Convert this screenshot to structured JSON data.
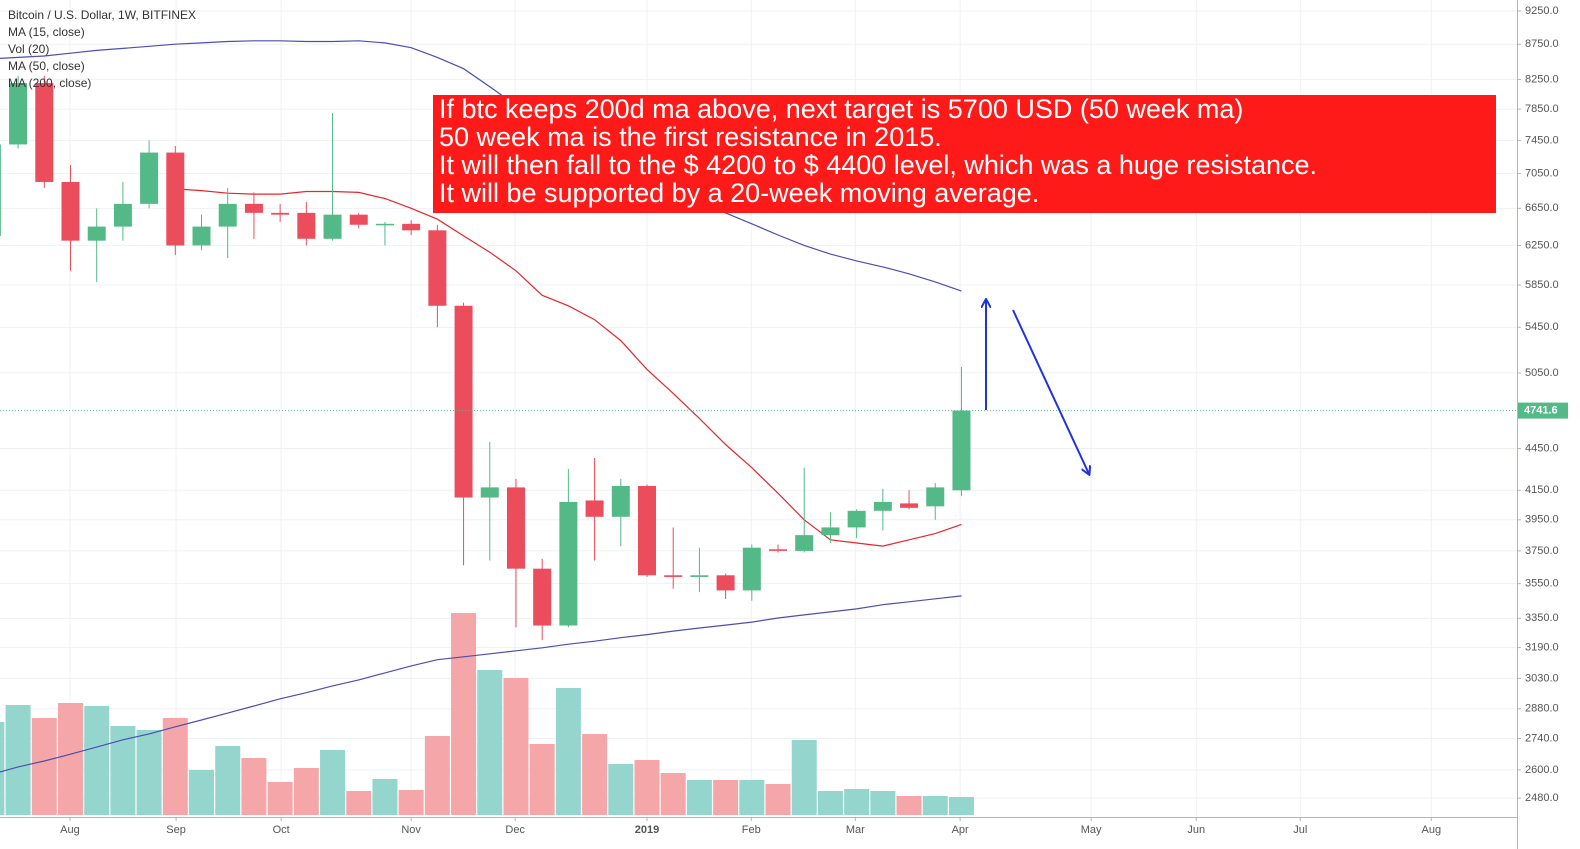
{
  "chart_data": {
    "type": "candlestick",
    "title": "Bitcoin / U.S. Dollar, 1W, BITFINEX",
    "log_scale": true,
    "grid": true,
    "up_color": "#53b987",
    "down_color": "#eb4d5c",
    "volume_up_color": "#94d6ce",
    "volume_down_color": "#f5a6a8",
    "categories": [
      null,
      null,
      null,
      null,
      null,
      null,
      null,
      null,
      null,
      null,
      null,
      null,
      null,
      null,
      null,
      null,
      null,
      null,
      null,
      null,
      null,
      null,
      null,
      null,
      null,
      null,
      null,
      null,
      null,
      null,
      null,
      null,
      null,
      null,
      null,
      null,
      null,
      null
    ],
    "open": [
      6350,
      7400,
      8200,
      6950,
      6300,
      6450,
      6700,
      7300,
      6250,
      6450,
      6700,
      6600,
      6600,
      6320,
      6580,
      6470,
      6480,
      6410,
      5650,
      4100,
      4170,
      3640,
      3310,
      4080,
      3970,
      4180,
      3600,
      3590,
      3600,
      3510,
      3760,
      3750,
      3850,
      3900,
      4010,
      4060,
      4040,
      4150
    ],
    "high": [
      7450,
      8300,
      8300,
      7150,
      6650,
      6950,
      7450,
      7380,
      6580,
      6880,
      6830,
      6700,
      6720,
      7800,
      6600,
      6500,
      6520,
      6470,
      5680,
      4500,
      4230,
      3700,
      4300,
      4380,
      4230,
      4190,
      3900,
      3770,
      3610,
      3790,
      3790,
      4310,
      4000,
      4020,
      4160,
      4150,
      4200,
      5100
    ],
    "low": [
      6250,
      7350,
      6880,
      5990,
      5880,
      6300,
      6650,
      6150,
      6200,
      6120,
      6320,
      6500,
      6250,
      6300,
      6430,
      6250,
      6360,
      5450,
      3660,
      3690,
      3300,
      3230,
      3300,
      3690,
      3780,
      3590,
      3520,
      3500,
      3460,
      3450,
      3740,
      3740,
      3800,
      3830,
      3880,
      4020,
      3950,
      4110
    ],
    "close": [
      7400,
      8200,
      6950,
      6300,
      6450,
      6700,
      7300,
      6250,
      6450,
      6700,
      6600,
      6580,
      6320,
      6580,
      6470,
      6480,
      6410,
      5650,
      4100,
      4170,
      3640,
      3310,
      4070,
      3970,
      4180,
      3600,
      3590,
      3600,
      3510,
      3770,
      3750,
      3850,
      3900,
      4010,
      4070,
      4030,
      4170,
      4741.6
    ],
    "series": [
      {
        "name": "MA (15, close)",
        "kind": "line",
        "color": "#e8262b",
        "values": [
          null,
          null,
          null,
          null,
          null,
          null,
          null,
          6870,
          6850,
          6820,
          6810,
          6810,
          6840,
          6840,
          6830,
          6760,
          6650,
          6530,
          6350,
          6180,
          5990,
          5750,
          5650,
          5520,
          5330,
          5080,
          4880,
          4680,
          4480,
          4310,
          4130,
          3950,
          3820,
          3800,
          3780,
          3820,
          3860,
          3920
        ]
      },
      {
        "name": "Vol (20)",
        "kind": "volume",
        "values": [
          93,
          110,
          97,
          112,
          109,
          89,
          85,
          97,
          45,
          69,
          57,
          33,
          47,
          65,
          24,
          36,
          25,
          79,
          202,
          145,
          137,
          71,
          127,
          81,
          51,
          55,
          42,
          35,
          35,
          35,
          31,
          75,
          24,
          26,
          24,
          19,
          19,
          18
        ]
      },
      {
        "name": "MA (50, close)",
        "kind": "line",
        "color": "#4a4fb3",
        "values": [
          8540,
          8560,
          8580,
          8620,
          8660,
          8690,
          8720,
          8750,
          8770,
          8790,
          8800,
          8800,
          8790,
          8790,
          8800,
          8770,
          8700,
          8560,
          8400,
          8150,
          7900,
          7650,
          7450,
          7250,
          7100,
          6950,
          6850,
          6720,
          6600,
          6480,
          6360,
          6250,
          6160,
          6090,
          6030,
          5960,
          5880,
          5790
        ]
      },
      {
        "name": "MA (200, close)",
        "kind": "line",
        "color": "#4a4fb3",
        "values": [
          2581,
          2613,
          2639,
          2669,
          2701,
          2734,
          2761,
          2794,
          2826,
          2859,
          2893,
          2928,
          2958,
          2992,
          3022,
          3058,
          3094,
          3126,
          3141,
          3157,
          3173,
          3189,
          3208,
          3224,
          3243,
          3260,
          3279,
          3296,
          3312,
          3329,
          3352,
          3369,
          3386,
          3403,
          3427,
          3444,
          3461,
          3478
        ]
      }
    ],
    "xlim": [
      0.31,
      58.2
    ],
    "xticks": [
      {
        "value": 2.98,
        "label": "Aug"
      },
      {
        "value": 7.03,
        "label": "Sep"
      },
      {
        "value": 11.04,
        "label": "Oct"
      },
      {
        "value": 16.0,
        "label": "Nov"
      },
      {
        "value": 19.97,
        "label": "Dec"
      },
      {
        "value": 25.0,
        "label": "2019",
        "bold": true
      },
      {
        "value": 28.98,
        "label": "Feb"
      },
      {
        "value": 32.95,
        "label": "Mar"
      },
      {
        "value": 36.95,
        "label": "Apr"
      },
      {
        "value": 41.95,
        "label": "May"
      },
      {
        "value": 45.96,
        "label": "Jun"
      },
      {
        "value": 49.93,
        "label": "Jul"
      },
      {
        "value": 54.93,
        "label": "Aug"
      }
    ],
    "ylim": [
      2411,
      9422
    ],
    "yticks": [
      {
        "value": 2480,
        "label": "2480.0"
      },
      {
        "value": 2600,
        "label": "2600.0"
      },
      {
        "value": 2740,
        "label": "2740.0"
      },
      {
        "value": 2880,
        "label": "2880.0"
      },
      {
        "value": 3030,
        "label": "3030.0"
      },
      {
        "value": 3190,
        "label": "3190.0"
      },
      {
        "value": 3350,
        "label": "3350.0"
      },
      {
        "value": 3550,
        "label": "3550.0"
      },
      {
        "value": 3750,
        "label": "3750.0"
      },
      {
        "value": 3950,
        "label": "3950.0"
      },
      {
        "value": 4150,
        "label": "4150.0"
      },
      {
        "value": 4450,
        "label": "4450.0"
      },
      {
        "value": 5050,
        "label": "5050.0"
      },
      {
        "value": 5450,
        "label": "5450.0"
      },
      {
        "value": 5850,
        "label": "5850.0"
      },
      {
        "value": 6250,
        "label": "6250.0"
      },
      {
        "value": 6650,
        "label": "6650.0"
      },
      {
        "value": 7050,
        "label": "7050.0"
      },
      {
        "value": 7450,
        "label": "7450.0"
      },
      {
        "value": 7850,
        "label": "7850.0"
      },
      {
        "value": 8250,
        "label": "8250.0"
      },
      {
        "value": 8750,
        "label": "8750.0"
      },
      {
        "value": 9250,
        "label": "9250.0"
      }
    ],
    "last_price": {
      "value": 4741.6,
      "label": "4741.6"
    },
    "annotation": {
      "lines": [
        "If btc keeps 200d ma above, next target is 5700 USD (50 week ma)",
        "50 week ma is the first resistance in 2015.",
        "It will then fall to the $ 4200 to $ 4400 level, which was a huge resistance.",
        "It will be supported by a 20-week moving average."
      ]
    }
  }
}
